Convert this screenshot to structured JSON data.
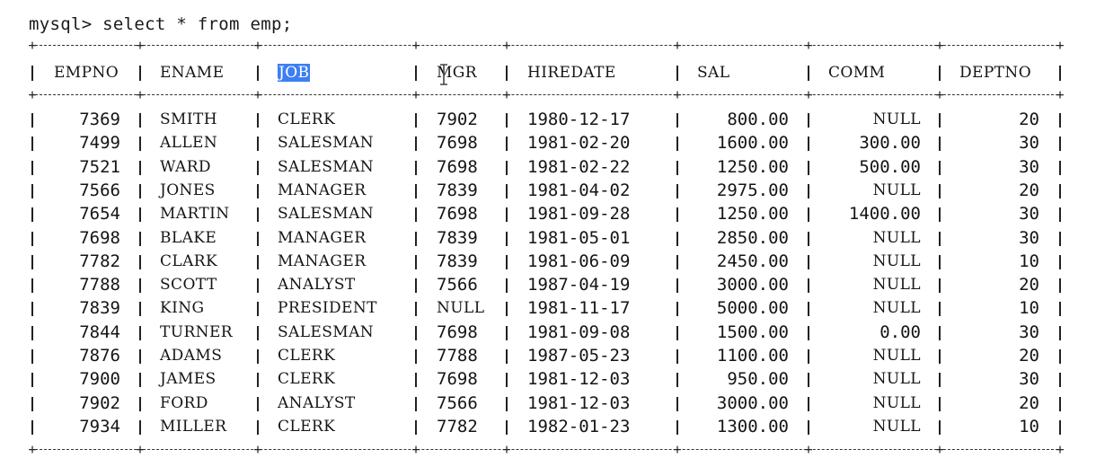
{
  "prompt": "mysql> select * from emp;",
  "table": {
    "columns": [
      "EMPNO",
      "ENAME",
      "JOB",
      "MGR",
      "HIREDATE",
      "SAL",
      "COMM",
      "DEPTNO"
    ],
    "selected_column_text": "JOB",
    "rows": [
      [
        "7369",
        "SMITH",
        "CLERK",
        "7902",
        "1980-12-17",
        "800.00",
        "NULL",
        "20"
      ],
      [
        "7499",
        "ALLEN",
        "SALESMAN",
        "7698",
        "1981-02-20",
        "1600.00",
        "300.00",
        "30"
      ],
      [
        "7521",
        "WARD",
        "SALESMAN",
        "7698",
        "1981-02-22",
        "1250.00",
        "500.00",
        "30"
      ],
      [
        "7566",
        "JONES",
        "MANAGER",
        "7839",
        "1981-04-02",
        "2975.00",
        "NULL",
        "20"
      ],
      [
        "7654",
        "MARTIN",
        "SALESMAN",
        "7698",
        "1981-09-28",
        "1250.00",
        "1400.00",
        "30"
      ],
      [
        "7698",
        "BLAKE",
        "MANAGER",
        "7839",
        "1981-05-01",
        "2850.00",
        "NULL",
        "30"
      ],
      [
        "7782",
        "CLARK",
        "MANAGER",
        "7839",
        "1981-06-09",
        "2450.00",
        "NULL",
        "10"
      ],
      [
        "7788",
        "SCOTT",
        "ANALYST",
        "7566",
        "1987-04-19",
        "3000.00",
        "NULL",
        "20"
      ],
      [
        "7839",
        "KING",
        "PRESIDENT",
        "NULL",
        "1981-11-17",
        "5000.00",
        "NULL",
        "10"
      ],
      [
        "7844",
        "TURNER",
        "SALESMAN",
        "7698",
        "1981-09-08",
        "1500.00",
        "0.00",
        "30"
      ],
      [
        "7876",
        "ADAMS",
        "CLERK",
        "7788",
        "1987-05-23",
        "1100.00",
        "NULL",
        "20"
      ],
      [
        "7900",
        "JAMES",
        "CLERK",
        "7698",
        "1981-12-03",
        "950.00",
        "NULL",
        "30"
      ],
      [
        "7902",
        "FORD",
        "ANALYST",
        "7566",
        "1981-12-03",
        "3000.00",
        "NULL",
        "20"
      ],
      [
        "7934",
        "MILLER",
        "CLERK",
        "7782",
        "1982-01-23",
        "1300.00",
        "NULL",
        "10"
      ]
    ]
  },
  "colors": {
    "selection": "#3d7ff2",
    "text": "#151515",
    "background": "#ffffff"
  },
  "icons": [
    "text-cursor-icon"
  ]
}
